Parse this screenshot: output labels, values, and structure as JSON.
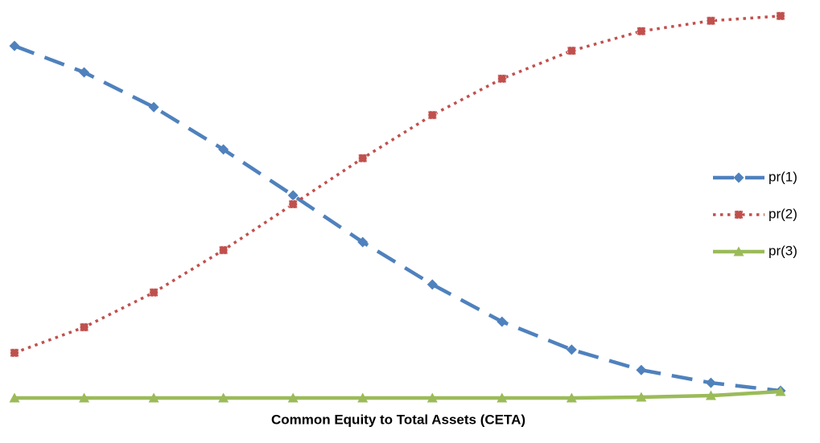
{
  "chart_data": {
    "type": "line",
    "x_label": "Common Equity to Total Assets  (CETA)",
    "ylim": [
      0,
      1
    ],
    "legend": "right",
    "series": [
      {
        "name": "pr(1)",
        "color": "#4f81bd",
        "marker": "diamond",
        "dash": "long-dash",
        "values": [
          0.883,
          0.817,
          0.73,
          0.624,
          0.509,
          0.392,
          0.286,
          0.193,
          0.123,
          0.072,
          0.04,
          0.02
        ]
      },
      {
        "name": "pr(2)",
        "color": "#c0504d",
        "marker": "square",
        "dash": "dot",
        "values": [
          0.115,
          0.179,
          0.266,
          0.372,
          0.487,
          0.602,
          0.71,
          0.801,
          0.871,
          0.92,
          0.946,
          0.958
        ]
      },
      {
        "name": "pr(3)",
        "color": "#9bbb59",
        "marker": "triangle",
        "dash": "solid",
        "values": [
          0.002,
          0.002,
          0.002,
          0.002,
          0.002,
          0.002,
          0.002,
          0.002,
          0.002,
          0.004,
          0.008,
          0.018
        ]
      }
    ]
  }
}
